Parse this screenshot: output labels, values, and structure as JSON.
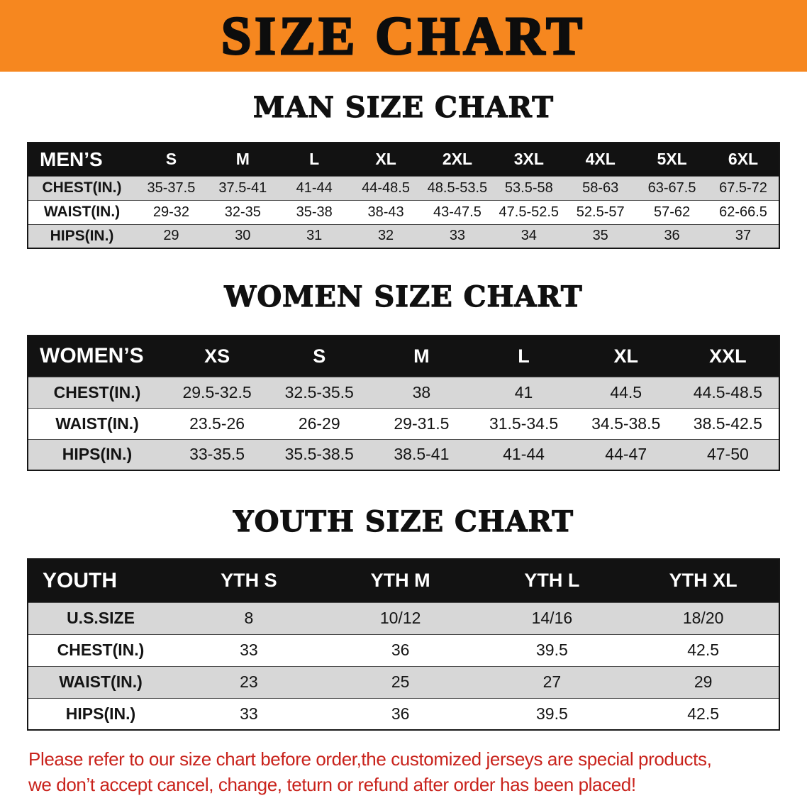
{
  "banner": {
    "title": "SIZE CHART"
  },
  "sections": [
    {
      "heading": "MAN SIZE CHART",
      "table": {
        "header": [
          "MEN’S",
          "S",
          "M",
          "L",
          "XL",
          "2XL",
          "3XL",
          "4XL",
          "5XL",
          "6XL"
        ],
        "rows": [
          [
            "CHEST(IN.)",
            "35-37.5",
            "37.5-41",
            "41-44",
            "44-48.5",
            "48.5-53.5",
            "53.5-58",
            "58-63",
            "63-67.5",
            "67.5-72"
          ],
          [
            "WAIST(IN.)",
            "29-32",
            "32-35",
            "35-38",
            "38-43",
            "43-47.5",
            "47.5-52.5",
            "52.5-57",
            "57-62",
            "62-66.5"
          ],
          [
            "HIPS(IN.)",
            "29",
            "30",
            "31",
            "32",
            "33",
            "34",
            "35",
            "36",
            "37"
          ]
        ]
      }
    },
    {
      "heading": "WOMEN SIZE CHART",
      "table": {
        "header": [
          "WOMEN’S",
          "XS",
          "S",
          "M",
          "L",
          "XL",
          "XXL"
        ],
        "rows": [
          [
            "CHEST(IN.)",
            "29.5-32.5",
            "32.5-35.5",
            "38",
            "41",
            "44.5",
            "44.5-48.5"
          ],
          [
            "WAIST(IN.)",
            "23.5-26",
            "26-29",
            "29-31.5",
            "31.5-34.5",
            "34.5-38.5",
            "38.5-42.5"
          ],
          [
            "HIPS(IN.)",
            "33-35.5",
            "35.5-38.5",
            "38.5-41",
            "41-44",
            "44-47",
            "47-50"
          ]
        ]
      }
    },
    {
      "heading": "YOUTH SIZE CHART",
      "table": {
        "header": [
          "YOUTH",
          "YTH S",
          "YTH M",
          "YTH L",
          "YTH XL"
        ],
        "rows": [
          [
            "U.S.SIZE",
            "8",
            "10/12",
            "14/16",
            "18/20"
          ],
          [
            "CHEST(IN.)",
            "33",
            "36",
            "39.5",
            "42.5"
          ],
          [
            "WAIST(IN.)",
            "23",
            "25",
            "27",
            "29"
          ],
          [
            "HIPS(IN.)",
            "33",
            "36",
            "39.5",
            "42.5"
          ]
        ]
      }
    }
  ],
  "notice": {
    "line1": "Please refer to our size chart before order,the customized jerseys are special products,",
    "line2": "we don’t accept cancel, change, teturn or refund after order has been placed!"
  },
  "colors": {
    "banner_orange": "#f6871f",
    "table_header_black": "#121212",
    "row_alt_gray": "#d7d7d7",
    "notice_red": "#c9231c"
  }
}
